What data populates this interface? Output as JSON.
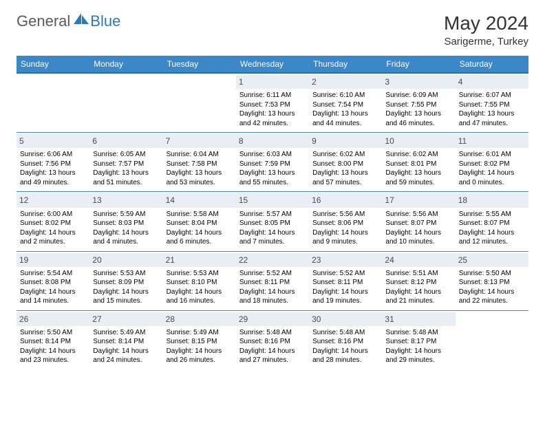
{
  "brand": {
    "name1": "General",
    "name2": "Blue"
  },
  "title": "May 2024",
  "location": "Sarigerme, Turkey",
  "header_bg": "#3c87c7",
  "header_border": "#2a6ea8",
  "daynum_bg": "#e8eef3",
  "row_border": "#3c87c7",
  "day_names": [
    "Sunday",
    "Monday",
    "Tuesday",
    "Wednesday",
    "Thursday",
    "Friday",
    "Saturday"
  ],
  "weeks": [
    [
      {
        "n": "",
        "sr": "",
        "ss": "",
        "dl": ""
      },
      {
        "n": "",
        "sr": "",
        "ss": "",
        "dl": ""
      },
      {
        "n": "",
        "sr": "",
        "ss": "",
        "dl": ""
      },
      {
        "n": "1",
        "sr": "Sunrise: 6:11 AM",
        "ss": "Sunset: 7:53 PM",
        "dl": "Daylight: 13 hours and 42 minutes."
      },
      {
        "n": "2",
        "sr": "Sunrise: 6:10 AM",
        "ss": "Sunset: 7:54 PM",
        "dl": "Daylight: 13 hours and 44 minutes."
      },
      {
        "n": "3",
        "sr": "Sunrise: 6:09 AM",
        "ss": "Sunset: 7:55 PM",
        "dl": "Daylight: 13 hours and 46 minutes."
      },
      {
        "n": "4",
        "sr": "Sunrise: 6:07 AM",
        "ss": "Sunset: 7:55 PM",
        "dl": "Daylight: 13 hours and 47 minutes."
      }
    ],
    [
      {
        "n": "5",
        "sr": "Sunrise: 6:06 AM",
        "ss": "Sunset: 7:56 PM",
        "dl": "Daylight: 13 hours and 49 minutes."
      },
      {
        "n": "6",
        "sr": "Sunrise: 6:05 AM",
        "ss": "Sunset: 7:57 PM",
        "dl": "Daylight: 13 hours and 51 minutes."
      },
      {
        "n": "7",
        "sr": "Sunrise: 6:04 AM",
        "ss": "Sunset: 7:58 PM",
        "dl": "Daylight: 13 hours and 53 minutes."
      },
      {
        "n": "8",
        "sr": "Sunrise: 6:03 AM",
        "ss": "Sunset: 7:59 PM",
        "dl": "Daylight: 13 hours and 55 minutes."
      },
      {
        "n": "9",
        "sr": "Sunrise: 6:02 AM",
        "ss": "Sunset: 8:00 PM",
        "dl": "Daylight: 13 hours and 57 minutes."
      },
      {
        "n": "10",
        "sr": "Sunrise: 6:02 AM",
        "ss": "Sunset: 8:01 PM",
        "dl": "Daylight: 13 hours and 59 minutes."
      },
      {
        "n": "11",
        "sr": "Sunrise: 6:01 AM",
        "ss": "Sunset: 8:02 PM",
        "dl": "Daylight: 14 hours and 0 minutes."
      }
    ],
    [
      {
        "n": "12",
        "sr": "Sunrise: 6:00 AM",
        "ss": "Sunset: 8:02 PM",
        "dl": "Daylight: 14 hours and 2 minutes."
      },
      {
        "n": "13",
        "sr": "Sunrise: 5:59 AM",
        "ss": "Sunset: 8:03 PM",
        "dl": "Daylight: 14 hours and 4 minutes."
      },
      {
        "n": "14",
        "sr": "Sunrise: 5:58 AM",
        "ss": "Sunset: 8:04 PM",
        "dl": "Daylight: 14 hours and 6 minutes."
      },
      {
        "n": "15",
        "sr": "Sunrise: 5:57 AM",
        "ss": "Sunset: 8:05 PM",
        "dl": "Daylight: 14 hours and 7 minutes."
      },
      {
        "n": "16",
        "sr": "Sunrise: 5:56 AM",
        "ss": "Sunset: 8:06 PM",
        "dl": "Daylight: 14 hours and 9 minutes."
      },
      {
        "n": "17",
        "sr": "Sunrise: 5:56 AM",
        "ss": "Sunset: 8:07 PM",
        "dl": "Daylight: 14 hours and 10 minutes."
      },
      {
        "n": "18",
        "sr": "Sunrise: 5:55 AM",
        "ss": "Sunset: 8:07 PM",
        "dl": "Daylight: 14 hours and 12 minutes."
      }
    ],
    [
      {
        "n": "19",
        "sr": "Sunrise: 5:54 AM",
        "ss": "Sunset: 8:08 PM",
        "dl": "Daylight: 14 hours and 14 minutes."
      },
      {
        "n": "20",
        "sr": "Sunrise: 5:53 AM",
        "ss": "Sunset: 8:09 PM",
        "dl": "Daylight: 14 hours and 15 minutes."
      },
      {
        "n": "21",
        "sr": "Sunrise: 5:53 AM",
        "ss": "Sunset: 8:10 PM",
        "dl": "Daylight: 14 hours and 16 minutes."
      },
      {
        "n": "22",
        "sr": "Sunrise: 5:52 AM",
        "ss": "Sunset: 8:11 PM",
        "dl": "Daylight: 14 hours and 18 minutes."
      },
      {
        "n": "23",
        "sr": "Sunrise: 5:52 AM",
        "ss": "Sunset: 8:11 PM",
        "dl": "Daylight: 14 hours and 19 minutes."
      },
      {
        "n": "24",
        "sr": "Sunrise: 5:51 AM",
        "ss": "Sunset: 8:12 PM",
        "dl": "Daylight: 14 hours and 21 minutes."
      },
      {
        "n": "25",
        "sr": "Sunrise: 5:50 AM",
        "ss": "Sunset: 8:13 PM",
        "dl": "Daylight: 14 hours and 22 minutes."
      }
    ],
    [
      {
        "n": "26",
        "sr": "Sunrise: 5:50 AM",
        "ss": "Sunset: 8:14 PM",
        "dl": "Daylight: 14 hours and 23 minutes."
      },
      {
        "n": "27",
        "sr": "Sunrise: 5:49 AM",
        "ss": "Sunset: 8:14 PM",
        "dl": "Daylight: 14 hours and 24 minutes."
      },
      {
        "n": "28",
        "sr": "Sunrise: 5:49 AM",
        "ss": "Sunset: 8:15 PM",
        "dl": "Daylight: 14 hours and 26 minutes."
      },
      {
        "n": "29",
        "sr": "Sunrise: 5:48 AM",
        "ss": "Sunset: 8:16 PM",
        "dl": "Daylight: 14 hours and 27 minutes."
      },
      {
        "n": "30",
        "sr": "Sunrise: 5:48 AM",
        "ss": "Sunset: 8:16 PM",
        "dl": "Daylight: 14 hours and 28 minutes."
      },
      {
        "n": "31",
        "sr": "Sunrise: 5:48 AM",
        "ss": "Sunset: 8:17 PM",
        "dl": "Daylight: 14 hours and 29 minutes."
      },
      {
        "n": "",
        "sr": "",
        "ss": "",
        "dl": ""
      }
    ]
  ]
}
